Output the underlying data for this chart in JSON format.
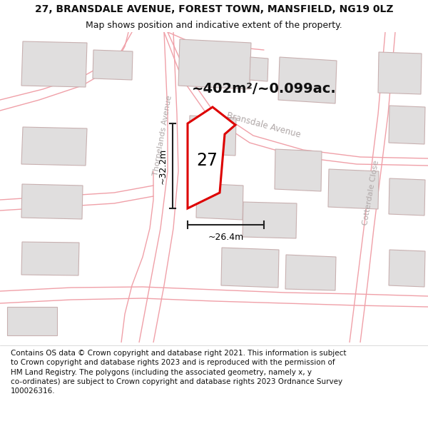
{
  "title_line1": "27, BRANSDALE AVENUE, FOREST TOWN, MANSFIELD, NG19 0LZ",
  "title_line2": "Map shows position and indicative extent of the property.",
  "area_text": "~402m²/~0.099ac.",
  "label_27": "27",
  "dim_vertical": "~32.2m",
  "dim_horizontal": "~26.4m",
  "road_thorpelands": "Thorpelands Avenue",
  "road_bransdale": "Bransdale Avenue",
  "road_cotterdale": "Cotterdale Close",
  "footer_text": "Contains OS data © Crown copyright and database right 2021. This information is subject to Crown copyright and database rights 2023 and is reproduced with the permission of HM Land Registry. The polygons (including the associated geometry, namely x, y co-ordinates) are subject to Crown copyright and database rights 2023 Ordnance Survey 100026316.",
  "bg_color": "#ffffff",
  "road_line_color": "#f0a0a8",
  "road_fill_color": "#faf5f5",
  "building_color": "#e0dede",
  "building_edge_color": "#c8b0b0",
  "property_fill": "#ffffff",
  "property_edge_color": "#dd0000",
  "title_fontsize": 10,
  "subtitle_fontsize": 9,
  "footer_fontsize": 7.5,
  "road_label_color": "#b0a8a8",
  "dim_line_color": "#222222"
}
